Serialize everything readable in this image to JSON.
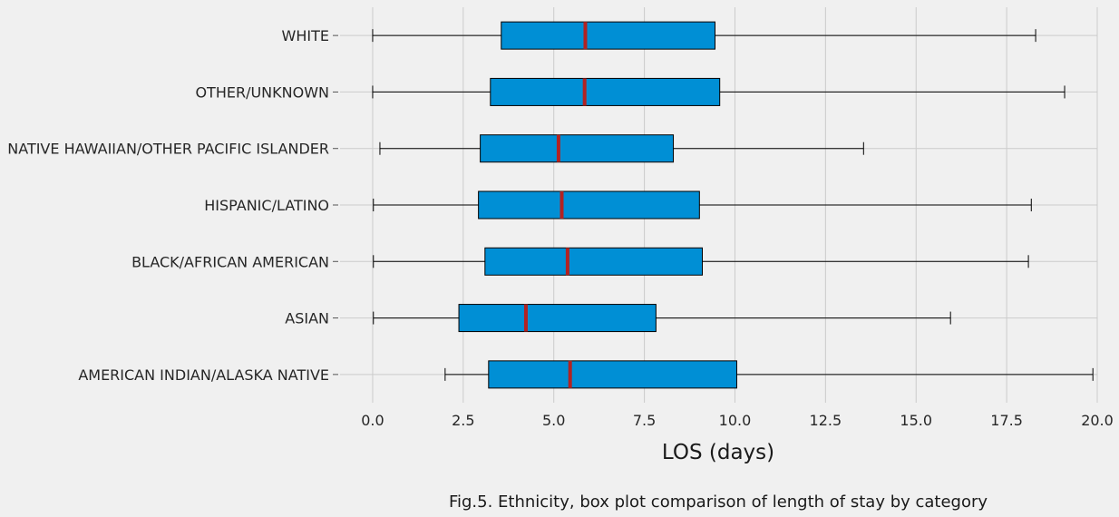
{
  "chart_data": {
    "type": "boxplot",
    "orientation": "horizontal",
    "xlabel": "LOS (days)",
    "caption": "Fig.5. Ethnicity, box plot comparison of length of stay by category",
    "xlim": [
      -0.9,
      20.0
    ],
    "xticks": [
      0.0,
      2.5,
      5.0,
      7.5,
      10.0,
      12.5,
      15.0,
      17.5,
      20.0
    ],
    "xtick_labels": [
      "0.0",
      "2.5",
      "5.0",
      "7.5",
      "10.0",
      "12.5",
      "15.0",
      "17.5",
      "20.0"
    ],
    "grid": true,
    "categories": [
      "WHITE",
      "OTHER/UNKNOWN",
      "NATIVE HAWAIIAN/OTHER PACIFIC ISLANDER",
      "HISPANIC/LATINO",
      "BLACK/AFRICAN AMERICAN",
      "ASIAN",
      "AMERICAN INDIAN/ALASKA NATIVE"
    ],
    "boxes": [
      {
        "category": "WHITE",
        "whisker_low": 0.0,
        "q1": 3.55,
        "median": 5.87,
        "q3": 9.45,
        "whisker_high": 18.3
      },
      {
        "category": "OTHER/UNKNOWN",
        "whisker_low": 0.0,
        "q1": 3.25,
        "median": 5.85,
        "q3": 9.58,
        "whisker_high": 19.1
      },
      {
        "category": "NATIVE HAWAIIAN/OTHER PACIFIC ISLANDER",
        "whisker_low": 0.2,
        "q1": 2.97,
        "median": 5.13,
        "q3": 8.3,
        "whisker_high": 13.55
      },
      {
        "category": "HISPANIC/LATINO",
        "whisker_low": 0.02,
        "q1": 2.92,
        "median": 5.22,
        "q3": 9.02,
        "whisker_high": 18.18
      },
      {
        "category": "BLACK/AFRICAN AMERICAN",
        "whisker_low": 0.02,
        "q1": 3.1,
        "median": 5.38,
        "q3": 9.1,
        "whisker_high": 18.1
      },
      {
        "category": "ASIAN",
        "whisker_low": 0.02,
        "q1": 2.38,
        "median": 4.23,
        "q3": 7.82,
        "whisker_high": 15.95
      },
      {
        "category": "AMERICAN INDIAN/ALASKA NATIVE",
        "whisker_low": 2.0,
        "q1": 3.2,
        "median": 5.45,
        "q3": 10.05,
        "whisker_high": 19.88
      }
    ],
    "colors": {
      "background": "#f0f0f0",
      "box_fill": "#008fd5",
      "box_edge": "#000000",
      "median": "#b22222",
      "whisker": "#000000",
      "grid": "#cbcbcb",
      "text": "#262626"
    }
  }
}
